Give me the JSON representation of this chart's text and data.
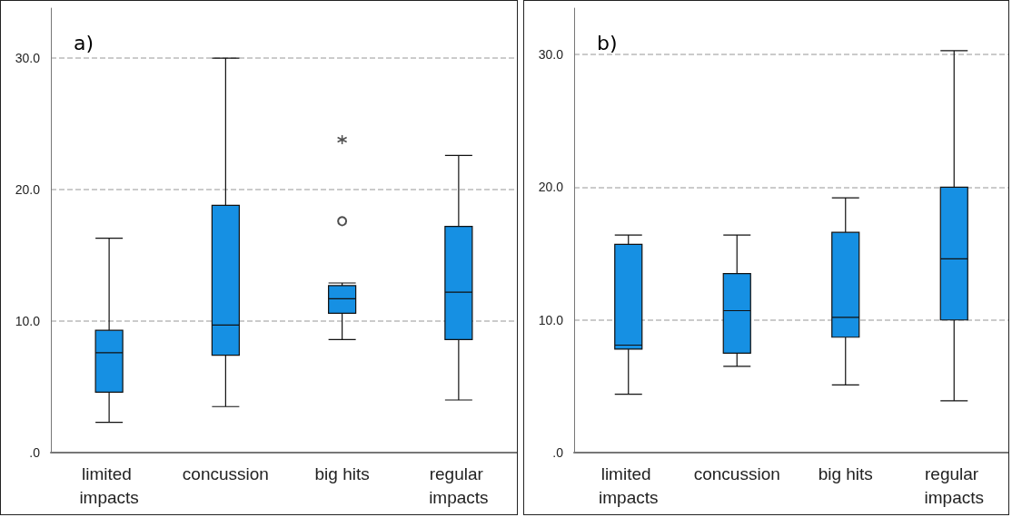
{
  "chart_data": [
    {
      "type": "box",
      "title": "a)",
      "categories": [
        "limited impacts",
        "concussion",
        "big hits",
        "regular impacts"
      ],
      "color": "#1690e3",
      "ylim": [
        0,
        33.8
      ],
      "yticks": [
        {
          "value": 0,
          "label": ".0"
        },
        {
          "value": 10,
          "label": "10.0"
        },
        {
          "value": 20,
          "label": "20.0"
        },
        {
          "value": 30,
          "label": "30.0"
        }
      ],
      "grid": "y",
      "boxes": [
        {
          "low": 2.3,
          "q1": 4.6,
          "median": 7.6,
          "q3": 9.3,
          "high": 16.3
        },
        {
          "low": 3.5,
          "q1": 7.4,
          "median": 9.7,
          "q3": 18.8,
          "high": 30.0
        },
        {
          "low": 8.6,
          "q1": 10.6,
          "median": 11.7,
          "q3": 12.7,
          "high": 12.9,
          "outliers": [
            17.6,
            23.8
          ]
        },
        {
          "low": 4.0,
          "q1": 8.6,
          "median": 12.2,
          "q3": 17.2,
          "high": 22.6
        }
      ]
    },
    {
      "type": "box",
      "title": "b)",
      "categories": [
        "limited impacts",
        "concussion",
        "big hits",
        "regular impacts"
      ],
      "color": "#1690e3",
      "ylim": [
        0,
        33.5
      ],
      "yticks": [
        {
          "value": 0,
          "label": ".0"
        },
        {
          "value": 10,
          "label": "10.0"
        },
        {
          "value": 20,
          "label": "20.0"
        },
        {
          "value": 30,
          "label": "30.0"
        }
      ],
      "grid": "y",
      "boxes": [
        {
          "low": 4.4,
          "q1": 7.8,
          "median": 8.1,
          "q3": 15.7,
          "high": 16.4
        },
        {
          "low": 6.5,
          "q1": 7.5,
          "median": 10.7,
          "q3": 13.5,
          "high": 16.4
        },
        {
          "low": 5.1,
          "q1": 8.7,
          "median": 10.2,
          "q3": 16.6,
          "high": 19.2
        },
        {
          "low": 3.9,
          "q1": 10.0,
          "median": 14.6,
          "q3": 20.0,
          "high": 30.3
        }
      ]
    }
  ]
}
